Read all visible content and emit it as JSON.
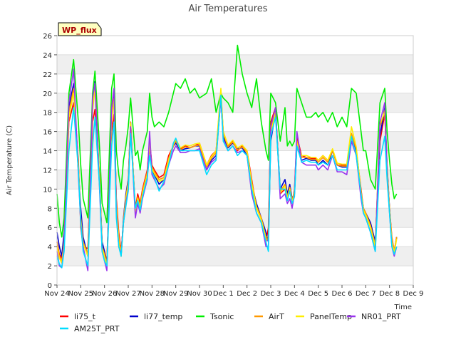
{
  "chart_data": {
    "type": "line",
    "title": "Air Temperatures",
    "xlabel": "Time",
    "ylabel": "Air Temperature (C)",
    "badge": "WP_flux",
    "xlim": [
      0,
      15
    ],
    "ylim": [
      0,
      26
    ],
    "x_ticks": [
      0,
      1,
      2,
      3,
      4,
      5,
      6,
      7,
      8,
      9,
      10,
      11,
      12,
      13,
      14,
      15
    ],
    "x_tick_labels": [
      "Nov 24",
      "Nov 25",
      "Nov 26",
      "Nov 27",
      "Nov 28",
      "Nov 29",
      "Nov 30",
      "Dec 1",
      "Dec 2",
      "Dec 3",
      "Dec 4",
      "Dec 5",
      "Dec 6",
      "Dec 7",
      "Dec 8",
      "Dec 9"
    ],
    "y_ticks": [
      0,
      2,
      4,
      6,
      8,
      10,
      12,
      14,
      16,
      18,
      20,
      22,
      24,
      26
    ],
    "x": [
      0.0,
      0.1,
      0.2,
      0.3,
      0.5,
      0.7,
      0.9,
      1.0,
      1.1,
      1.3,
      1.5,
      1.6,
      1.8,
      1.9,
      2.0,
      2.1,
      2.3,
      2.4,
      2.5,
      2.6,
      2.7,
      2.8,
      2.9,
      3.0,
      3.1,
      3.3,
      3.4,
      3.5,
      3.6,
      3.8,
      3.9,
      4.0,
      4.1,
      4.3,
      4.5,
      4.7,
      4.9,
      5.0,
      5.2,
      5.4,
      5.6,
      5.8,
      6.0,
      6.3,
      6.5,
      6.7,
      6.9,
      7.0,
      7.2,
      7.4,
      7.6,
      7.8,
      8.0,
      8.2,
      8.4,
      8.6,
      8.8,
      8.9,
      9.0,
      9.2,
      9.4,
      9.6,
      9.7,
      9.8,
      9.9,
      10.0,
      10.1,
      10.3,
      10.5,
      10.7,
      10.9,
      11.0,
      11.2,
      11.4,
      11.6,
      11.8,
      12.0,
      12.2,
      12.4,
      12.6,
      12.8,
      12.9,
      13.0,
      13.2,
      13.4,
      13.6,
      13.8,
      13.9,
      14.0,
      14.1,
      14.2,
      14.3
    ],
    "series": [
      {
        "name": "li75_t",
        "color": "#ff0000",
        "values": [
          4.5,
          3.2,
          2.8,
          5.0,
          17.0,
          19.0,
          13.0,
          6.0,
          4.0,
          3.8,
          17.0,
          18.3,
          11.0,
          4.0,
          3.5,
          2.5,
          16.0,
          17.8,
          9.0,
          5.5,
          3.5,
          6.5,
          9.0,
          10.5,
          16.5,
          8.0,
          9.5,
          8.5,
          10.0,
          12.0,
          15.0,
          12.5,
          12.0,
          11.2,
          11.5,
          13.5,
          14.5,
          15.0,
          14.2,
          14.5,
          14.3,
          14.5,
          14.8,
          12.5,
          13.5,
          14.0,
          20.0,
          16.0,
          14.5,
          15.0,
          14.0,
          14.5,
          14.0,
          11.0,
          8.0,
          7.0,
          4.5,
          6.0,
          17.0,
          18.5,
          9.5,
          10.0,
          9.0,
          10.0,
          8.5,
          10.0,
          15.5,
          13.5,
          13.3,
          13.2,
          13.2,
          13.0,
          13.5,
          13.0,
          14.0,
          12.5,
          12.5,
          12.5,
          15.5,
          14.0,
          10.0,
          8.0,
          7.5,
          6.0,
          4.0,
          15.0,
          17.8,
          12.0,
          8.0,
          5.0,
          3.5,
          5.0
        ]
      },
      {
        "name": "li77_temp",
        "color": "#0000cc",
        "values": [
          5.5,
          4.0,
          3.0,
          5.5,
          18.5,
          21.0,
          12.0,
          8.0,
          5.0,
          3.0,
          19.0,
          21.2,
          10.0,
          4.5,
          3.5,
          2.0,
          18.0,
          20.0,
          8.0,
          4.5,
          3.0,
          7.0,
          9.5,
          11.0,
          17.0,
          7.5,
          9.0,
          8.0,
          9.5,
          11.5,
          14.5,
          12.0,
          11.5,
          10.5,
          11.0,
          13.0,
          14.5,
          14.8,
          14.0,
          14.2,
          14.3,
          14.5,
          14.5,
          12.0,
          13.0,
          13.5,
          19.5,
          15.5,
          14.3,
          14.8,
          14.2,
          14.3,
          13.5,
          10.5,
          8.5,
          7.0,
          5.5,
          4.5,
          15.0,
          18.0,
          10.0,
          11.0,
          9.5,
          10.5,
          9.0,
          9.5,
          14.5,
          13.0,
          13.2,
          13.0,
          13.0,
          12.5,
          13.0,
          12.5,
          14.0,
          12.5,
          12.3,
          12.3,
          15.0,
          14.0,
          9.5,
          8.0,
          7.5,
          6.5,
          4.5,
          15.5,
          18.5,
          12.5,
          8.0,
          4.5,
          3.5,
          5.0
        ]
      },
      {
        "name": "Tsonic",
        "color": "#00ee00",
        "values": [
          9.5,
          6.5,
          5.0,
          7.0,
          20.0,
          23.5,
          17.0,
          12.5,
          9.0,
          7.0,
          20.0,
          22.3,
          14.0,
          8.5,
          7.5,
          6.5,
          20.5,
          22.0,
          14.0,
          11.5,
          10.0,
          13.0,
          14.5,
          16.5,
          19.5,
          13.5,
          14.0,
          12.0,
          14.0,
          16.0,
          20.0,
          17.5,
          16.5,
          17.0,
          16.5,
          18.0,
          20.0,
          21.0,
          20.5,
          21.5,
          20.0,
          20.5,
          19.5,
          20.0,
          21.5,
          18.0,
          20.0,
          19.5,
          19.0,
          18.0,
          25.0,
          22.0,
          20.0,
          18.5,
          21.5,
          17.0,
          14.0,
          13.0,
          20.0,
          19.0,
          15.0,
          18.5,
          14.5,
          15.0,
          14.5,
          15.0,
          20.5,
          19.0,
          17.5,
          17.5,
          18.0,
          17.5,
          18.0,
          17.0,
          18.0,
          16.5,
          17.5,
          16.5,
          20.5,
          20.0,
          16.0,
          14.0,
          14.0,
          11.0,
          10.0,
          19.0,
          20.5,
          16.0,
          13.0,
          10.5,
          9.0,
          9.5
        ]
      },
      {
        "name": "AirT",
        "color": "#ff9900",
        "values": [
          4.5,
          3.0,
          2.5,
          4.5,
          18.0,
          20.5,
          12.5,
          7.0,
          4.5,
          3.2,
          18.5,
          20.8,
          10.5,
          4.0,
          3.2,
          2.2,
          17.5,
          19.5,
          8.5,
          5.0,
          3.2,
          6.8,
          9.2,
          10.8,
          17.0,
          7.8,
          9.2,
          8.2,
          9.8,
          11.8,
          14.8,
          12.3,
          11.8,
          11.0,
          11.2,
          13.2,
          14.5,
          15.0,
          14.1,
          14.4,
          14.3,
          14.5,
          14.6,
          12.3,
          13.2,
          13.8,
          20.2,
          15.8,
          14.4,
          14.9,
          14.1,
          14.4,
          13.8,
          10.8,
          8.2,
          7.0,
          5.0,
          5.0,
          16.0,
          18.2,
          9.8,
          10.5,
          9.2,
          10.2,
          8.8,
          9.8,
          15.0,
          13.3,
          13.3,
          13.1,
          13.1,
          12.8,
          13.3,
          12.8,
          14.0,
          12.5,
          12.4,
          12.4,
          15.8,
          14.2,
          9.8,
          8.0,
          7.5,
          6.2,
          4.2,
          16.5,
          18.2,
          12.2,
          8.0,
          4.8,
          3.5,
          5.0
        ]
      },
      {
        "name": "PanelTemp",
        "color": "#ffee00",
        "values": [
          4.0,
          2.8,
          2.3,
          4.2,
          17.5,
          20.0,
          12.2,
          6.8,
          4.3,
          3.0,
          18.2,
          20.5,
          10.2,
          3.8,
          3.0,
          2.0,
          17.2,
          19.2,
          8.2,
          4.8,
          3.0,
          6.5,
          9.0,
          10.5,
          16.8,
          7.5,
          9.0,
          8.0,
          9.5,
          11.5,
          14.6,
          12.1,
          11.6,
          10.8,
          11.0,
          13.0,
          14.7,
          15.2,
          14.3,
          14.6,
          14.5,
          14.7,
          14.8,
          12.5,
          13.4,
          14.0,
          20.5,
          16.0,
          14.6,
          15.1,
          14.3,
          14.6,
          14.0,
          10.5,
          8.0,
          6.8,
          4.8,
          4.8,
          15.8,
          18.0,
          9.6,
          10.3,
          9.0,
          10.0,
          8.6,
          9.6,
          14.8,
          13.5,
          13.5,
          13.3,
          13.3,
          13.0,
          13.5,
          13.0,
          14.2,
          12.7,
          12.6,
          12.6,
          16.5,
          14.4,
          9.6,
          7.8,
          7.3,
          6.0,
          4.0,
          16.8,
          18.0,
          12.0,
          7.8,
          4.6,
          3.3,
          4.8
        ]
      },
      {
        "name": "NR01_PRT",
        "color": "#9933ee",
        "values": [
          3.5,
          2.0,
          1.8,
          4.0,
          19.0,
          22.5,
          11.5,
          6.5,
          4.0,
          1.5,
          19.5,
          21.0,
          9.5,
          3.5,
          2.5,
          1.5,
          18.5,
          20.5,
          7.5,
          4.0,
          3.2,
          6.5,
          8.5,
          10.0,
          16.5,
          7.0,
          8.5,
          7.5,
          9.0,
          11.0,
          16.0,
          11.5,
          11.0,
          10.0,
          10.5,
          12.5,
          14.0,
          14.5,
          13.8,
          13.8,
          14.0,
          14.0,
          14.2,
          12.0,
          12.8,
          13.2,
          19.5,
          15.2,
          14.0,
          14.5,
          13.8,
          14.0,
          13.5,
          9.5,
          7.5,
          6.5,
          4.0,
          4.0,
          16.5,
          18.5,
          9.0,
          9.5,
          8.5,
          9.0,
          8.0,
          9.5,
          16.0,
          12.8,
          12.5,
          12.5,
          12.5,
          12.0,
          12.5,
          12.0,
          13.5,
          11.8,
          11.8,
          11.5,
          15.0,
          13.5,
          9.0,
          7.5,
          7.0,
          5.5,
          3.5,
          17.0,
          19.0,
          11.5,
          7.5,
          4.0,
          3.0,
          4.0
        ]
      },
      {
        "name": "AM25T_PRT",
        "color": "#00ddff",
        "values": [
          3.0,
          2.2,
          1.8,
          3.5,
          14.0,
          18.5,
          12.0,
          6.5,
          3.5,
          2.0,
          14.5,
          17.5,
          10.0,
          3.5,
          2.5,
          2.0,
          14.5,
          17.0,
          7.0,
          4.0,
          3.0,
          6.5,
          8.2,
          9.8,
          15.8,
          8.0,
          8.8,
          7.8,
          9.2,
          11.2,
          13.5,
          11.8,
          11.2,
          9.8,
          10.8,
          12.5,
          14.8,
          15.3,
          14.0,
          14.0,
          14.0,
          14.0,
          14.0,
          11.5,
          12.5,
          13.0,
          19.8,
          15.0,
          14.0,
          14.5,
          13.5,
          14.0,
          13.5,
          10.0,
          7.5,
          6.5,
          4.5,
          3.5,
          15.5,
          17.5,
          10.0,
          10.0,
          8.8,
          9.8,
          8.5,
          9.2,
          14.5,
          12.8,
          13.0,
          12.8,
          12.8,
          12.5,
          12.8,
          12.5,
          13.5,
          12.0,
          12.0,
          12.0,
          15.5,
          13.5,
          9.5,
          7.5,
          7.0,
          5.5,
          3.5,
          13.0,
          15.5,
          11.0,
          7.5,
          4.0,
          3.2,
          4.0
        ]
      }
    ]
  }
}
